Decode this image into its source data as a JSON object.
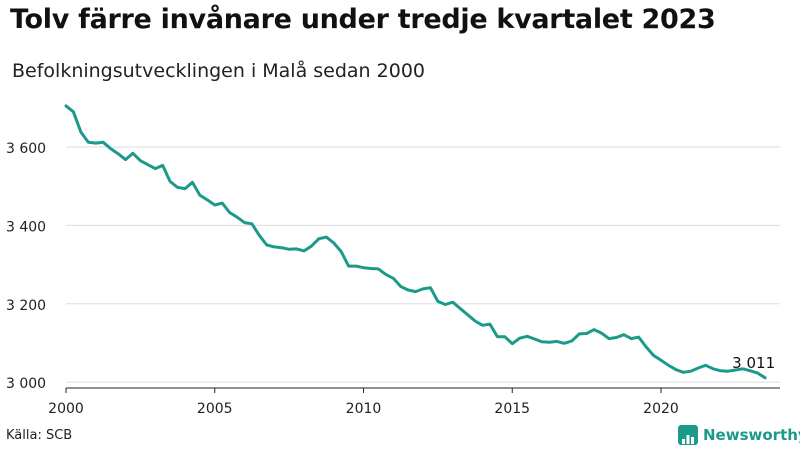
{
  "title": "Tolv färre invånare under tredje kvartalet 2023",
  "subtitle": "Befolkningsutvecklingen i Malå sedan 2000",
  "source": "Källa: SCB",
  "brand": {
    "name": "Newsworthy",
    "icon": "newsworthy-chart-icon",
    "color": "#1b9a8a"
  },
  "chart_data": {
    "type": "line",
    "title": "Tolv färre invånare under tredje kvartalet 2023",
    "subtitle": "Befolkningsutvecklingen i Malå sedan 2000",
    "xlabel": "",
    "ylabel": "",
    "xlim": [
      2000,
      2024
    ],
    "ylim": [
      2985,
      3720
    ],
    "xticks": [
      2000,
      2005,
      2010,
      2015,
      2020
    ],
    "xtick_labels": [
      "2000",
      "2005",
      "2010",
      "2015",
      "2020"
    ],
    "yticks": [
      3000,
      3200,
      3400,
      3600
    ],
    "ytick_labels": [
      "3 000",
      "3 200",
      "3 400",
      "3 600"
    ],
    "grid": "horizontal",
    "line_color": "#1b9a8a",
    "end_label": "3 011",
    "series": [
      {
        "values": [
          [
            2000.0,
            3705
          ],
          [
            2000.25,
            3690
          ],
          [
            2000.5,
            3638
          ],
          [
            2000.75,
            3612
          ],
          [
            2001.0,
            3610
          ],
          [
            2001.25,
            3612
          ],
          [
            2001.5,
            3596
          ],
          [
            2001.75,
            3583
          ],
          [
            2002.0,
            3568
          ],
          [
            2002.25,
            3584
          ],
          [
            2002.5,
            3565
          ],
          [
            2002.75,
            3555
          ],
          [
            2003.0,
            3545
          ],
          [
            2003.25,
            3553
          ],
          [
            2003.5,
            3512
          ],
          [
            2003.75,
            3497
          ],
          [
            2004.0,
            3494
          ],
          [
            2004.25,
            3510
          ],
          [
            2004.5,
            3477
          ],
          [
            2004.75,
            3465
          ],
          [
            2005.0,
            3452
          ],
          [
            2005.25,
            3457
          ],
          [
            2005.5,
            3433
          ],
          [
            2005.75,
            3421
          ],
          [
            2006.0,
            3407
          ],
          [
            2006.25,
            3404
          ],
          [
            2006.5,
            3374
          ],
          [
            2006.75,
            3350
          ],
          [
            2007.0,
            3345
          ],
          [
            2007.25,
            3343
          ],
          [
            2007.5,
            3339
          ],
          [
            2007.75,
            3340
          ],
          [
            2008.0,
            3335
          ],
          [
            2008.25,
            3347
          ],
          [
            2008.5,
            3366
          ],
          [
            2008.75,
            3370
          ],
          [
            2009.0,
            3355
          ],
          [
            2009.25,
            3333
          ],
          [
            2009.5,
            3296
          ],
          [
            2009.75,
            3296
          ],
          [
            2010.0,
            3292
          ],
          [
            2010.25,
            3290
          ],
          [
            2010.5,
            3289
          ],
          [
            2010.75,
            3275
          ],
          [
            2011.0,
            3265
          ],
          [
            2011.25,
            3244
          ],
          [
            2011.5,
            3235
          ],
          [
            2011.75,
            3231
          ],
          [
            2012.0,
            3238
          ],
          [
            2012.25,
            3241
          ],
          [
            2012.5,
            3206
          ],
          [
            2012.75,
            3198
          ],
          [
            2013.0,
            3204
          ],
          [
            2013.25,
            3188
          ],
          [
            2013.5,
            3172
          ],
          [
            2013.75,
            3156
          ],
          [
            2014.0,
            3145
          ],
          [
            2014.25,
            3148
          ],
          [
            2014.5,
            3116
          ],
          [
            2014.75,
            3116
          ],
          [
            2015.0,
            3098
          ],
          [
            2015.25,
            3112
          ],
          [
            2015.5,
            3117
          ],
          [
            2015.75,
            3110
          ],
          [
            2016.0,
            3103
          ],
          [
            2016.25,
            3102
          ],
          [
            2016.5,
            3104
          ],
          [
            2016.75,
            3099
          ],
          [
            2017.0,
            3105
          ],
          [
            2017.25,
            3123
          ],
          [
            2017.5,
            3124
          ],
          [
            2017.75,
            3134
          ],
          [
            2018.0,
            3125
          ],
          [
            2018.25,
            3111
          ],
          [
            2018.5,
            3114
          ],
          [
            2018.75,
            3121
          ],
          [
            2019.0,
            3111
          ],
          [
            2019.25,
            3115
          ],
          [
            2019.5,
            3090
          ],
          [
            2019.75,
            3068
          ],
          [
            2020.0,
            3056
          ],
          [
            2020.25,
            3043
          ],
          [
            2020.5,
            3032
          ],
          [
            2020.75,
            3025
          ],
          [
            2021.0,
            3028
          ],
          [
            2021.25,
            3036
          ],
          [
            2021.5,
            3043
          ],
          [
            2021.75,
            3034
          ],
          [
            2022.0,
            3029
          ],
          [
            2022.25,
            3028
          ],
          [
            2022.5,
            3031
          ],
          [
            2022.75,
            3034
          ],
          [
            2023.0,
            3029
          ],
          [
            2023.25,
            3023
          ],
          [
            2023.5,
            3011
          ]
        ]
      }
    ]
  }
}
